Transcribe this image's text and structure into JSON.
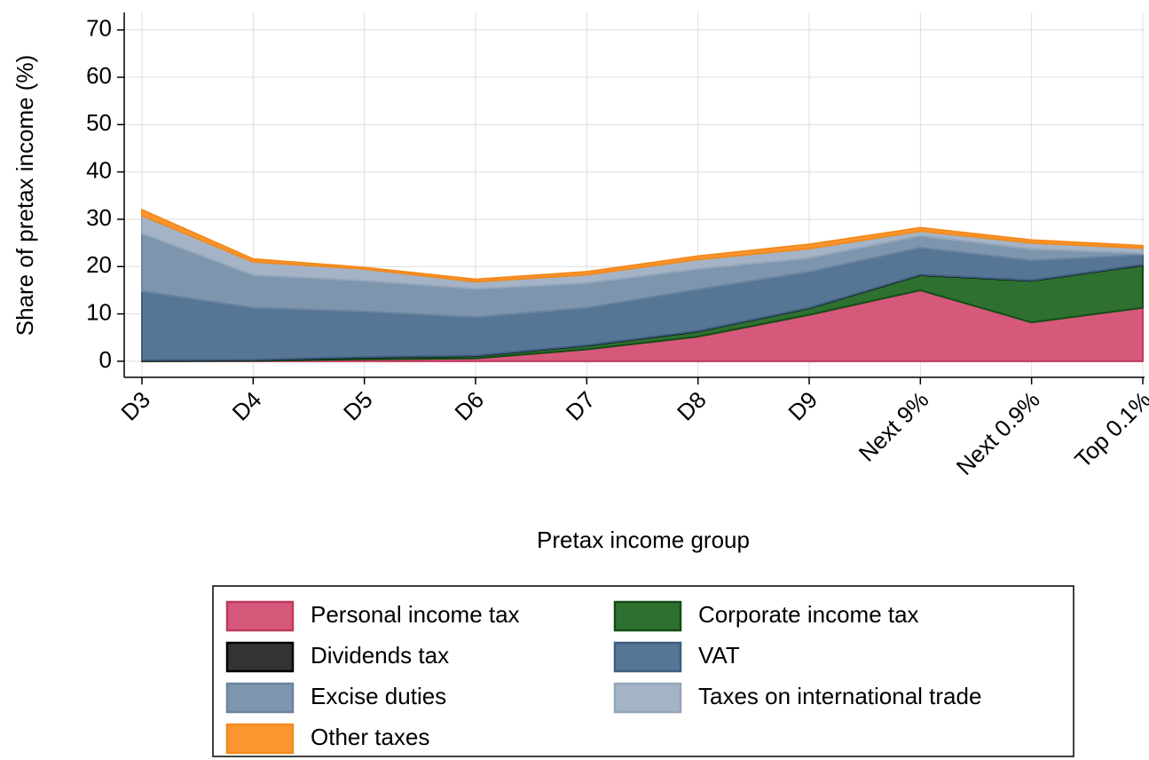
{
  "chart_data": {
    "type": "stacked-area",
    "x_label": "Pretax income group",
    "y_label": "Share of pretax income (%)",
    "categories": [
      "D3",
      "D4",
      "D5",
      "D6",
      "D7",
      "D8",
      "D9",
      "Next 9%",
      "Next 0.9%",
      "Top 0.1%"
    ],
    "ylim": [
      -3.4,
      73.7
    ],
    "yticks": [
      0,
      10,
      20,
      30,
      40,
      50,
      60,
      70
    ],
    "grid": true,
    "legend": "bottom",
    "series": [
      {
        "name": "Personal income tax",
        "color": "#d6587a",
        "edge": "#c0395f",
        "values": [
          0,
          0.1,
          0.4,
          0.6,
          2.5,
          5.2,
          9.8,
          15,
          8.2,
          11.3
        ]
      },
      {
        "name": "Corporate income tax",
        "color": "#2e7030",
        "edge": "#134d16",
        "values": [
          0.1,
          0.1,
          0.4,
          0.5,
          0.8,
          1.1,
          1.4,
          3.2,
          8.8,
          9
        ]
      },
      {
        "name": "Dividends tax",
        "color": "#333333",
        "edge": "#000000",
        "values": [
          0.1,
          0.1,
          0.1,
          0.1,
          0.1,
          0.1,
          0.1,
          0.1,
          0.1,
          0.1
        ]
      },
      {
        "name": "VAT",
        "color": "#577594",
        "edge": "#3e5e80",
        "values": [
          14.6,
          11,
          9.6,
          8.1,
          7.9,
          8.8,
          7.6,
          5.7,
          4.2,
          2.1
        ]
      },
      {
        "name": "Excise duties",
        "color": "#7d96ae",
        "edge": "#6a84a0",
        "values": [
          12.2,
          6.9,
          6.5,
          6,
          5.2,
          4.3,
          2.9,
          2.5,
          2.4,
          0.3
        ]
      },
      {
        "name": "Taxes on international trade",
        "color": "#a4b4c6",
        "edge": "#94a6ba",
        "values": [
          3.8,
          2.8,
          2.5,
          1.5,
          1.8,
          2,
          2,
          1,
          1.3,
          1.1
        ]
      },
      {
        "name": "Other taxes",
        "color": "#fd9531",
        "edge": "#f28a1c",
        "values": [
          1.2,
          0.6,
          0.3,
          0.5,
          0.6,
          0.7,
          0.9,
          0.7,
          0.6,
          0.5
        ]
      }
    ]
  }
}
